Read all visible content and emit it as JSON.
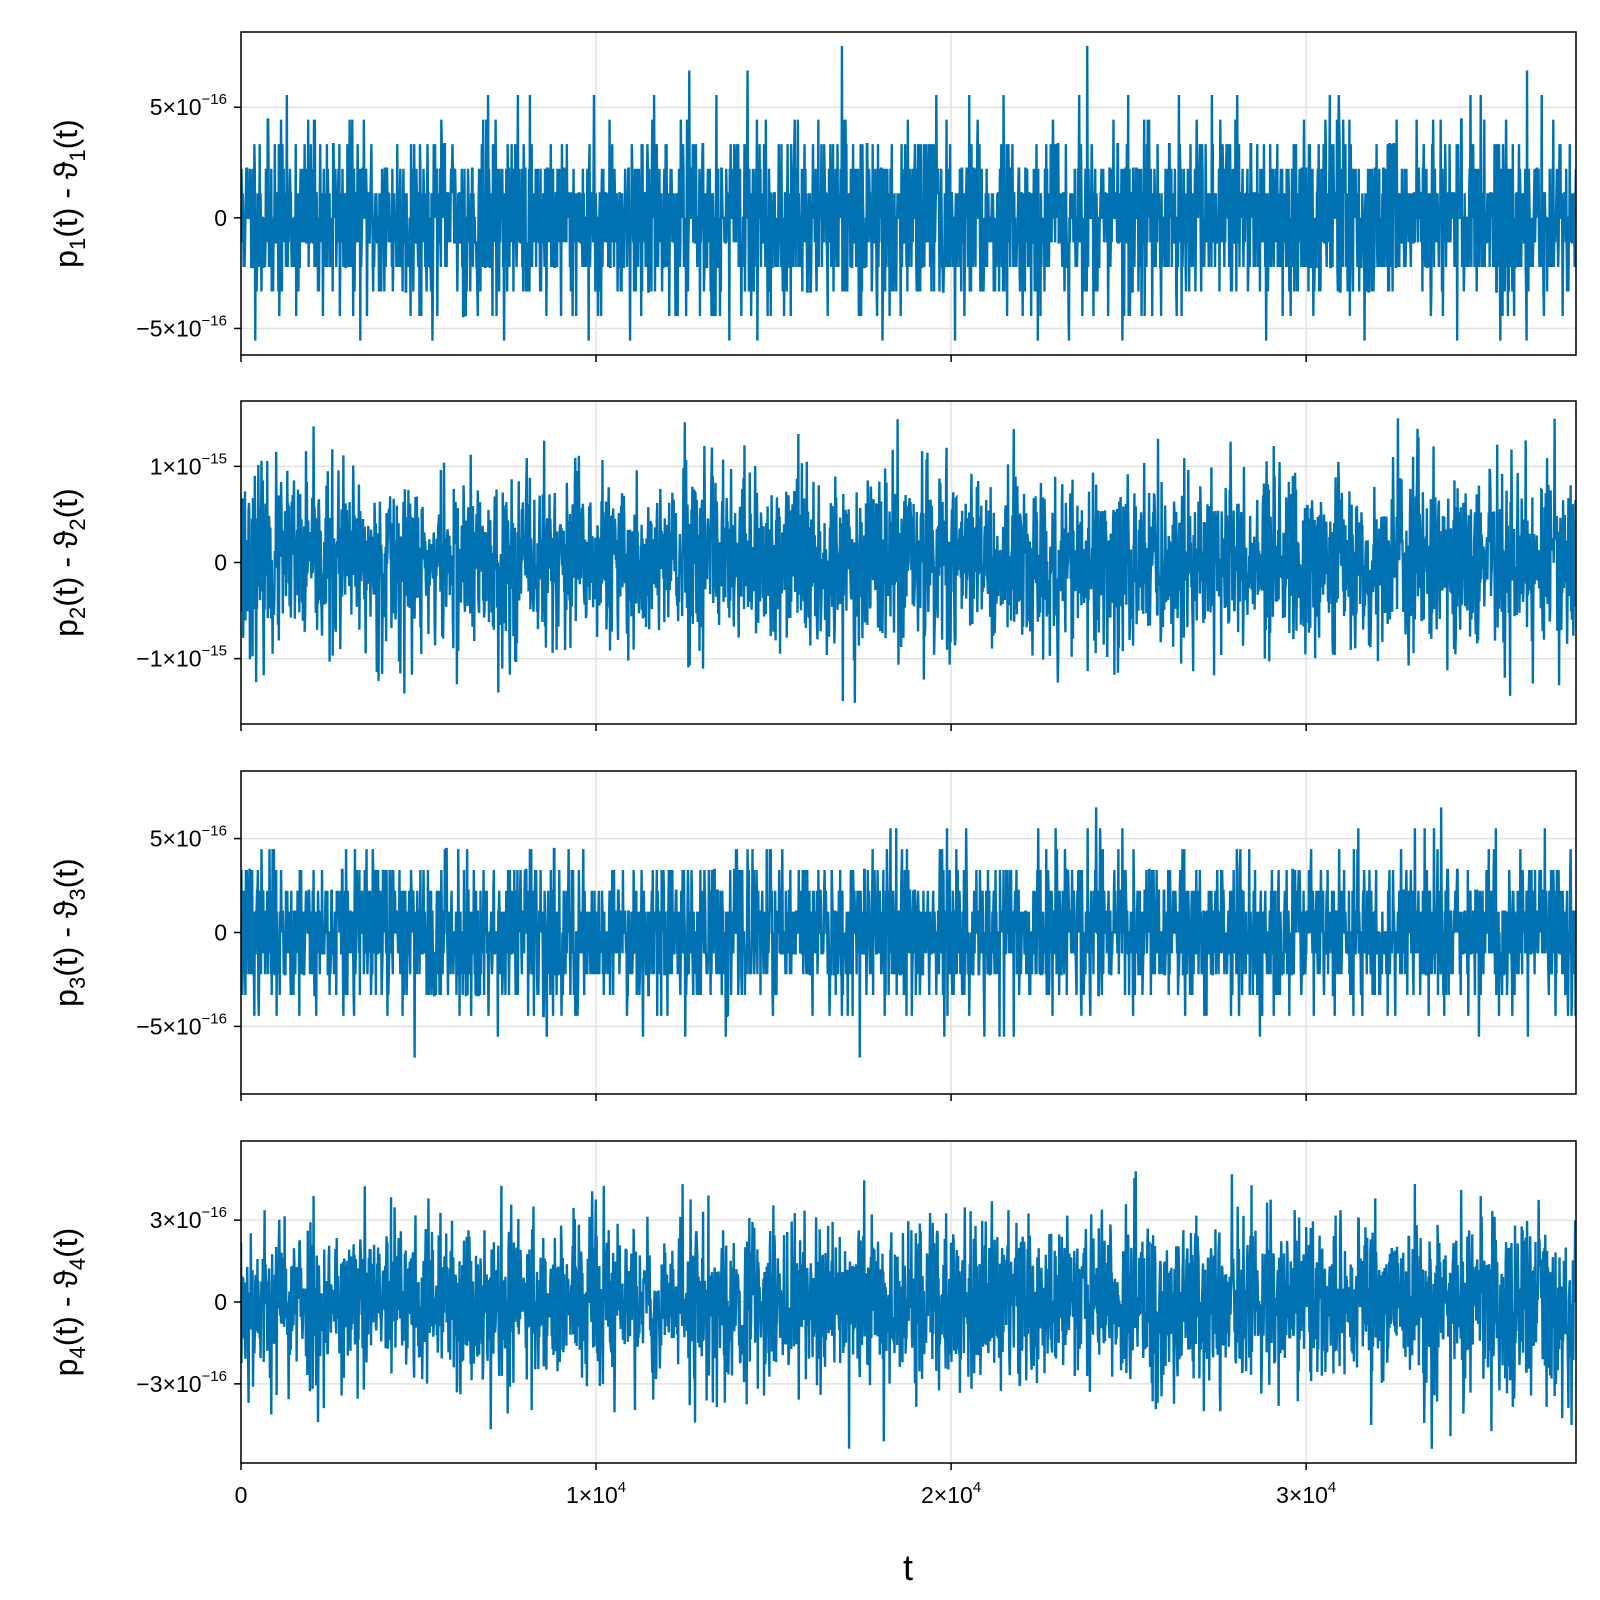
{
  "colors": {
    "series": "#0072b2",
    "grid": "#e3e3e3",
    "axes": "#000000"
  },
  "chart_data": {
    "type": "line",
    "xlabel": "t",
    "xlim": [
      0,
      37600
    ],
    "x_ticks": [
      {
        "value": 0,
        "base": "0",
        "exp": ""
      },
      {
        "value": 10000,
        "base": "1×10",
        "exp": "4"
      },
      {
        "value": 20000,
        "base": "2×10",
        "exp": "4"
      },
      {
        "value": 30000,
        "base": "3×10",
        "exp": "4"
      }
    ],
    "grid": true,
    "panels": [
      {
        "ylabel_parts": [
          "p",
          "1",
          "(t) - ϑ",
          "1",
          "(t)"
        ],
        "ylim": [
          -6.2e-16,
          8.4e-16
        ],
        "y_ticks": [
          {
            "value": 5e-16,
            "base": "5×10",
            "exp": "−16"
          },
          {
            "value": 0,
            "base": "0",
            "exp": ""
          },
          {
            "value": -5e-16,
            "base": "−5×10",
            "exp": "−16"
          }
        ],
        "noise": {
          "quantum": 1.11e-16,
          "sigma": 2e-16,
          "max": 7.77e-16,
          "min": -5.55e-16,
          "seed": 11
        }
      },
      {
        "ylabel_parts": [
          "p",
          "2",
          "(t) - ϑ",
          "2",
          "(t)"
        ],
        "ylim": [
          -1.68e-15,
          1.68e-15
        ],
        "y_ticks": [
          {
            "value": 1e-15,
            "base": "1×10",
            "exp": "−15"
          },
          {
            "value": 0,
            "base": "0",
            "exp": ""
          },
          {
            "value": -1e-15,
            "base": "−1×10",
            "exp": "−15"
          }
        ],
        "noise": {
          "quantum": 0,
          "sigma": 4.6e-16,
          "max": 1.5e-15,
          "min": -1.52e-15,
          "seed": 23
        }
      },
      {
        "ylabel_parts": [
          "p",
          "3",
          "(t) - ϑ",
          "3",
          "(t)"
        ],
        "ylim": [
          -8.6e-16,
          8.6e-16
        ],
        "y_ticks": [
          {
            "value": 5e-16,
            "base": "5×10",
            "exp": "−16"
          },
          {
            "value": 0,
            "base": "0",
            "exp": ""
          },
          {
            "value": -5e-16,
            "base": "−5×10",
            "exp": "−16"
          }
        ],
        "noise": {
          "quantum": 1.11e-16,
          "sigma": 2e-16,
          "max": 7.77e-16,
          "min": -7.77e-16,
          "seed": 37
        }
      },
      {
        "ylabel_parts": [
          "p",
          "4",
          "(t) - ϑ",
          "4",
          "(t)"
        ],
        "ylim": [
          -5.9e-16,
          5.9e-16
        ],
        "y_ticks": [
          {
            "value": 3e-16,
            "base": "3×10",
            "exp": "−16"
          },
          {
            "value": 0,
            "base": "0",
            "exp": ""
          },
          {
            "value": -3e-16,
            "base": "−3×10",
            "exp": "−16"
          }
        ],
        "noise": {
          "quantum": 0,
          "sigma": 1.55e-16,
          "max": 5.3e-16,
          "min": -5.4e-16,
          "seed": 53
        }
      }
    ]
  }
}
